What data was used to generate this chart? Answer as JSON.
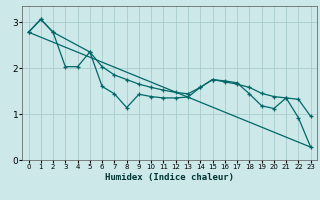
{
  "title": "",
  "xlabel": "Humidex (Indice chaleur)",
  "ylabel": "",
  "background_color": "#cce8e8",
  "grid_color": "#aacccc",
  "line_color": "#006868",
  "xlim": [
    -0.5,
    23.5
  ],
  "ylim": [
    0,
    3.35
  ],
  "yticks": [
    0,
    1,
    2,
    3
  ],
  "xticks": [
    0,
    1,
    2,
    3,
    4,
    5,
    6,
    7,
    8,
    9,
    10,
    11,
    12,
    13,
    14,
    15,
    16,
    17,
    18,
    19,
    20,
    21,
    22,
    23
  ],
  "line1_x": [
    0,
    1,
    2,
    3,
    4,
    5,
    6,
    7,
    8,
    9,
    10,
    11,
    12,
    13,
    14,
    15,
    16,
    17,
    18,
    19,
    20,
    21,
    22,
    23
  ],
  "line1_y": [
    2.78,
    3.06,
    2.78,
    2.03,
    2.03,
    2.35,
    1.6,
    1.44,
    1.14,
    1.43,
    1.38,
    1.35,
    1.35,
    1.37,
    1.58,
    1.75,
    1.72,
    1.68,
    1.44,
    1.18,
    1.12,
    1.35,
    0.92,
    0.28
  ],
  "line2_x": [
    0,
    1,
    2,
    5,
    6,
    7,
    8,
    9,
    10,
    11,
    12,
    13,
    14,
    15,
    16,
    17,
    18,
    19,
    20,
    21,
    22,
    23
  ],
  "line2_y": [
    2.78,
    3.06,
    2.78,
    2.35,
    2.03,
    1.85,
    1.75,
    1.65,
    1.58,
    1.52,
    1.47,
    1.44,
    1.58,
    1.75,
    1.7,
    1.65,
    1.58,
    1.45,
    1.38,
    1.35,
    1.32,
    0.95
  ],
  "line3_x": [
    0,
    23
  ],
  "line3_y": [
    2.78,
    0.28
  ]
}
